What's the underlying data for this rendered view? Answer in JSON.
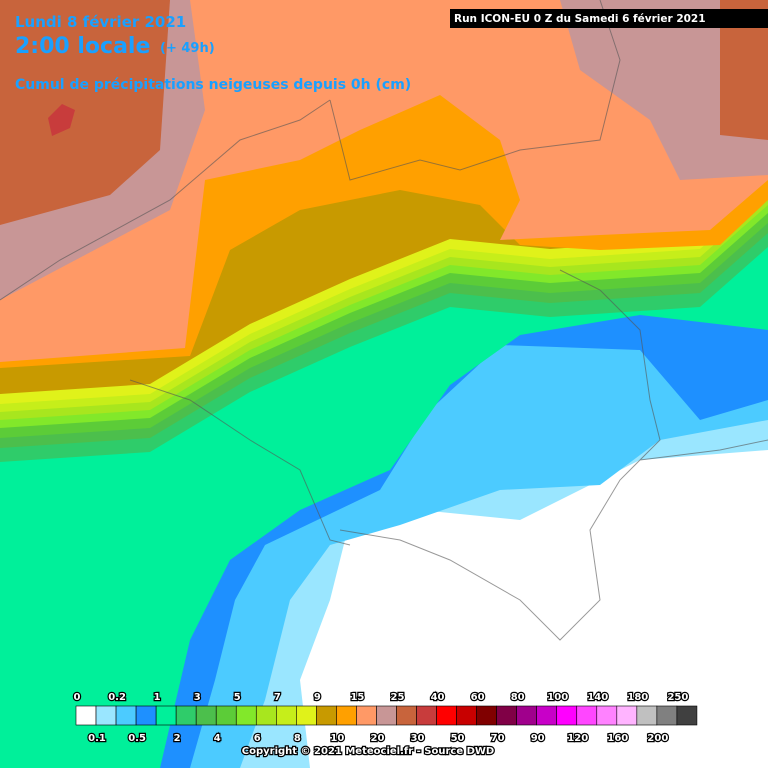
{
  "header": {
    "date": "Lundi 8 février 2021",
    "time": "2:00 locale",
    "lead": "(+ 49h)",
    "subtitle": "Cumul de précipitations neigeuses depuis 0h (cm)",
    "run": "Run ICON-EU 0 Z du Samedi 6 février 2021"
  },
  "legend": {
    "items": [
      {
        "label": "0",
        "color": "#ffffff"
      },
      {
        "label": "0.1",
        "color": "#9ae6ff"
      },
      {
        "label": "0.2",
        "color": "#4ccbff"
      },
      {
        "label": "0.5",
        "color": "#1e90ff"
      },
      {
        "label": "1",
        "color": "#00f09a"
      },
      {
        "label": "2",
        "color": "#2fcc6a"
      },
      {
        "label": "3",
        "color": "#4cbf4c"
      },
      {
        "label": "4",
        "color": "#5ccc38"
      },
      {
        "label": "5",
        "color": "#82e82a"
      },
      {
        "label": "6",
        "color": "#a8e61e"
      },
      {
        "label": "7",
        "color": "#c6ee1a"
      },
      {
        "label": "8",
        "color": "#e0f21a"
      },
      {
        "label": "9",
        "color": "#c89a00"
      },
      {
        "label": "10",
        "color": "#ffa000"
      },
      {
        "label": "15",
        "color": "#ff9966"
      },
      {
        "label": "20",
        "color": "#c89696"
      },
      {
        "label": "25",
        "color": "#c8643c"
      },
      {
        "label": "30",
        "color": "#c83c3c"
      },
      {
        "label": "40",
        "color": "#ff0000"
      },
      {
        "label": "50",
        "color": "#c80000"
      },
      {
        "label": "60",
        "color": "#800000"
      },
      {
        "label": "70",
        "color": "#800046"
      },
      {
        "label": "80",
        "color": "#a0008c"
      },
      {
        "label": "90",
        "color": "#c800c8"
      },
      {
        "label": "100",
        "color": "#ff00ff"
      },
      {
        "label": "120",
        "color": "#ff46ff"
      },
      {
        "label": "140",
        "color": "#ff82ff"
      },
      {
        "label": "160",
        "color": "#ffb4ff"
      },
      {
        "label": "180",
        "color": "#c0c0c0"
      },
      {
        "label": "200",
        "color": "#808080"
      },
      {
        "label": "250",
        "color": "#404040"
      }
    ]
  },
  "footer": {
    "copyright": "Copyright © 2021 Meteociel.fr - Source DWD"
  }
}
